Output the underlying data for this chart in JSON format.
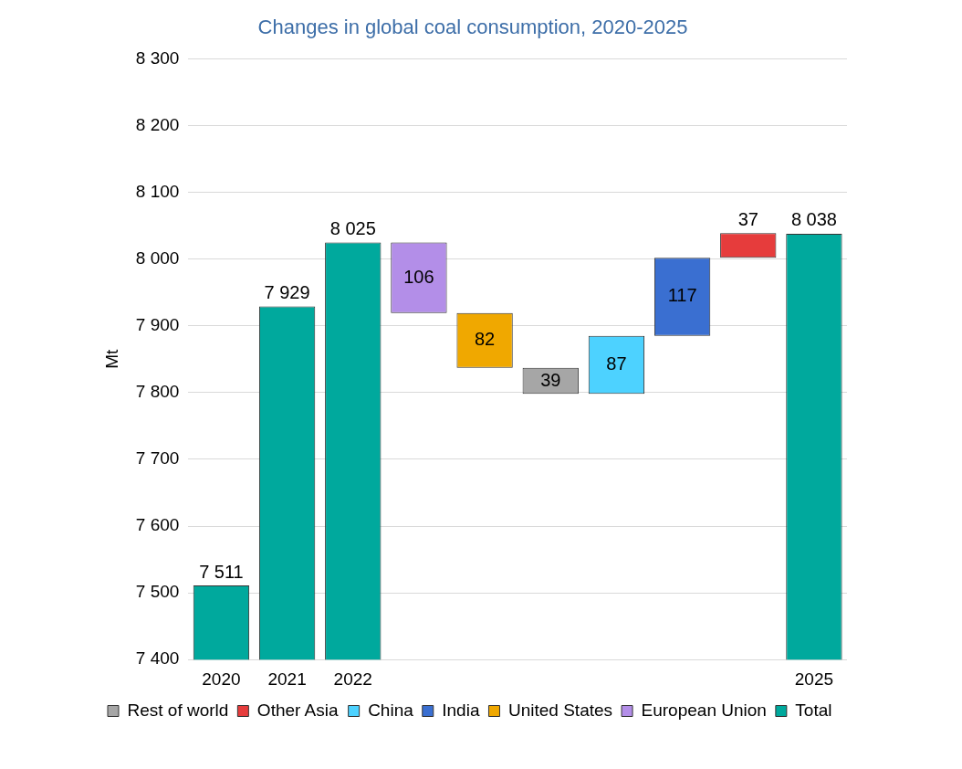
{
  "chart_data": {
    "type": "bar",
    "title": "Changes in global coal consumption, 2020-2025",
    "ylabel": "Mt",
    "categories": [
      "2020",
      "2021",
      "2022",
      null,
      null,
      null,
      null,
      null,
      null,
      "2025"
    ],
    "series": [
      {
        "name": "Rest of world",
        "color": "#a6a6a6",
        "values": [
          null,
          null,
          null,
          null,
          null,
          39,
          null,
          null,
          null,
          null
        ],
        "base": [
          null,
          null,
          null,
          null,
          null,
          7798,
          null,
          null,
          null,
          null
        ]
      },
      {
        "name": "Other Asia",
        "color": "#e63c3c",
        "values": [
          null,
          null,
          null,
          null,
          null,
          null,
          null,
          null,
          37,
          null
        ],
        "base": [
          null,
          null,
          null,
          null,
          null,
          null,
          null,
          null,
          8002,
          null
        ]
      },
      {
        "name": "China",
        "color": "#4dd2ff",
        "values": [
          null,
          null,
          null,
          null,
          null,
          null,
          87,
          null,
          null,
          null
        ],
        "base": [
          null,
          null,
          null,
          null,
          null,
          null,
          7798,
          null,
          null,
          null
        ]
      },
      {
        "name": "India",
        "color": "#3a6fd1",
        "values": [
          null,
          null,
          null,
          null,
          null,
          null,
          null,
          117,
          null,
          null
        ],
        "base": [
          null,
          null,
          null,
          null,
          null,
          null,
          null,
          7885,
          null,
          null
        ]
      },
      {
        "name": "United States",
        "color": "#f0a800",
        "values": [
          null,
          null,
          null,
          null,
          82,
          null,
          null,
          null,
          null,
          null
        ],
        "base": [
          null,
          null,
          null,
          null,
          7837,
          null,
          null,
          null,
          null,
          null
        ]
      },
      {
        "name": "European Union",
        "color": "#b38ee8",
        "values": [
          null,
          null,
          null,
          106,
          null,
          null,
          null,
          null,
          null,
          null
        ],
        "base": [
          null,
          null,
          null,
          7919,
          null,
          null,
          null,
          null,
          null,
          null
        ]
      },
      {
        "name": "Total",
        "color": "#00a99d",
        "values": [
          7511,
          7929,
          8025,
          null,
          null,
          null,
          null,
          null,
          null,
          8038
        ]
      }
    ],
    "ylim": [
      7400,
      8300
    ],
    "yticks": [
      {
        "value": 7400,
        "label": "7 400"
      },
      {
        "value": 7500,
        "label": "7 500"
      },
      {
        "value": 7600,
        "label": "7 600"
      },
      {
        "value": 7700,
        "label": "7 700"
      },
      {
        "value": 7800,
        "label": "7 800"
      },
      {
        "value": 7900,
        "label": "7 900"
      },
      {
        "value": 8000,
        "label": "8 000"
      },
      {
        "value": 8100,
        "label": "8 100"
      },
      {
        "value": 8200,
        "label": "8 200"
      },
      {
        "value": 8300,
        "label": "8 300"
      }
    ],
    "grid": "y",
    "legend": "bottom",
    "data_labels": true
  }
}
